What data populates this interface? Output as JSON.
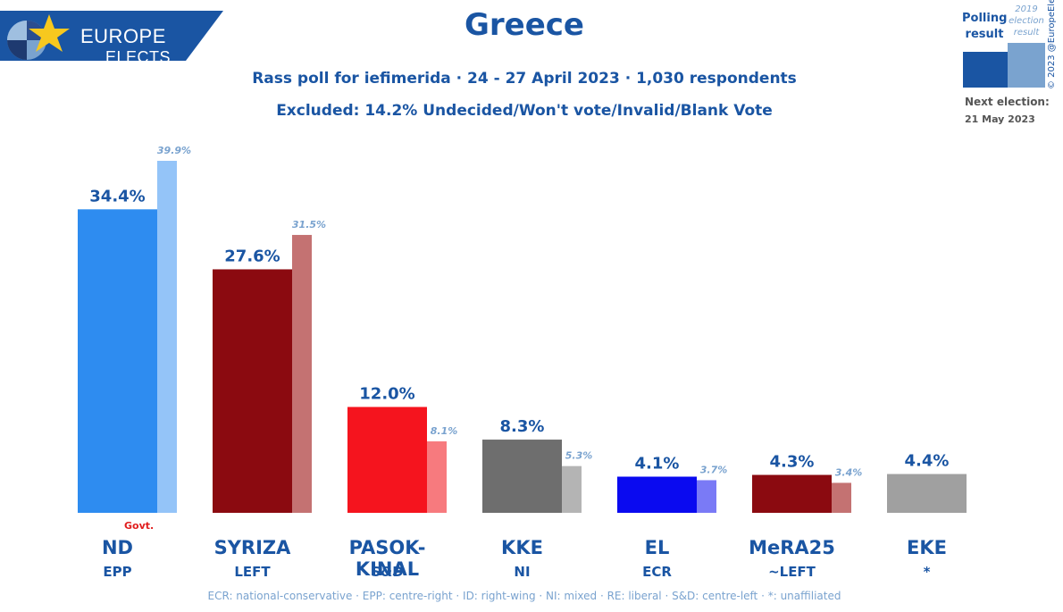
{
  "header": {
    "title": "Greece",
    "subtitle": "Rass poll for iefimerida · 24 - 27 April 2023 · 1,030 respondents",
    "excluded": "Excluded: 14.2% Undecided/Won't vote/Invalid/Blank Vote"
  },
  "logo": {
    "line1": "EUROPE",
    "line2": "ELECTS"
  },
  "legend": {
    "poll_label_line1": "Polling",
    "poll_label_line2": "result",
    "election_label_line1": "2019",
    "election_label_line2": "election",
    "election_label_line3": "result",
    "poll_color": "#1a55a3",
    "election_color": "#7aa3cf",
    "next_election_label": "Next election:",
    "next_election_date": "21 May 2023"
  },
  "copyright": "© 2023 @EuropeElects",
  "footnote": "ECR: national-conservative · EPP: centre-right · ID: right-wing · NI: mixed · RE: liberal · S&D: centre-left · *: unaffiliated",
  "govt_label": "Govt.",
  "chart_data": {
    "type": "bar",
    "categories": [
      "ND",
      "SYRIZA",
      "PASOK-KINAL",
      "KKE",
      "EL",
      "MeRA25",
      "EKE"
    ],
    "groups": [
      "EPP",
      "LEFT",
      "S&D",
      "NI",
      "ECR",
      "~LEFT",
      "*"
    ],
    "series": [
      {
        "name": "Polling result",
        "values": [
          34.4,
          27.6,
          12.0,
          8.3,
          4.1,
          4.3,
          4.4
        ],
        "labels": [
          "34.4%",
          "27.6%",
          "12.0%",
          "8.3%",
          "4.1%",
          "4.3%",
          "4.4%"
        ],
        "colors": [
          "#2e8cf0",
          "#8b0a10",
          "#f5141e",
          "#6e6e6e",
          "#0a0af0",
          "#8b0a10",
          "#a0a0a0"
        ]
      },
      {
        "name": "2019 election result",
        "values": [
          39.9,
          31.5,
          8.1,
          5.3,
          3.7,
          3.4,
          null
        ],
        "labels": [
          "39.9%",
          "31.5%",
          "8.1%",
          "5.3%",
          "3.7%",
          "3.4%",
          ""
        ],
        "colors": [
          "#94c4f8",
          "#c47272",
          "#f77a7e",
          "#b4b4b4",
          "#7a7af6",
          "#c47272",
          "#d0d0d0"
        ]
      }
    ],
    "govt_party": "ND",
    "ylim": [
      0,
      40
    ]
  }
}
